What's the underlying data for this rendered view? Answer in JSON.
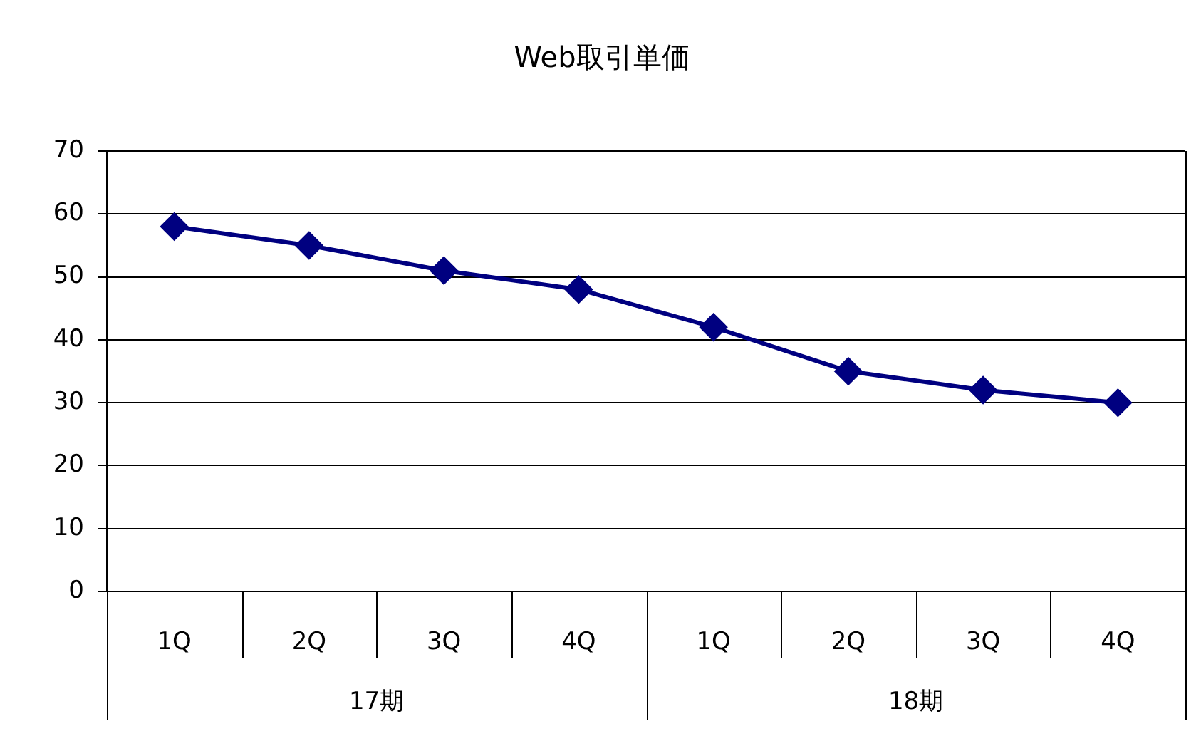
{
  "chart_data": {
    "type": "line",
    "title": "Web取引単価",
    "categories": [
      "1Q",
      "2Q",
      "3Q",
      "4Q",
      "1Q",
      "2Q",
      "3Q",
      "4Q"
    ],
    "values": [
      58,
      55,
      51,
      48,
      42,
      35,
      32,
      30
    ],
    "color": "#000080",
    "ylim": [
      0,
      70
    ],
    "yticks": [
      0,
      10,
      20,
      30,
      40,
      50,
      60,
      70
    ],
    "grid": "y",
    "marker": "diamond",
    "line_style": "solid",
    "annotations": [
      "17期",
      "18期"
    ]
  }
}
